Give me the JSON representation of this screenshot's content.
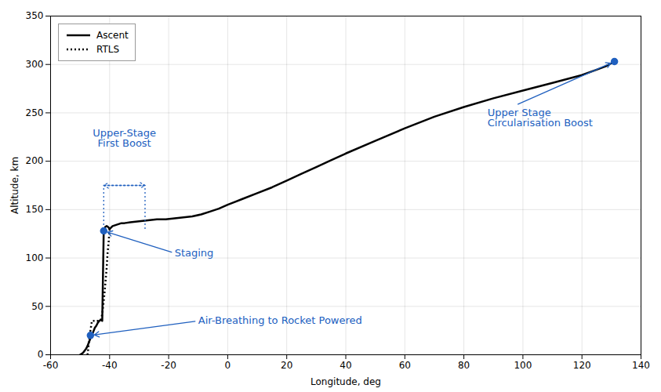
{
  "chart_data": {
    "type": "line",
    "xlabel": "Longitude, deg",
    "ylabel": "Altitude, km",
    "xlim": [
      -60,
      140
    ],
    "ylim": [
      0,
      350
    ],
    "xticks": [
      -60,
      -40,
      -20,
      0,
      20,
      40,
      60,
      80,
      100,
      120,
      140
    ],
    "yticks": [
      0,
      50,
      100,
      150,
      200,
      250,
      300,
      350
    ],
    "grid": true,
    "legend": "upper left",
    "series": [
      {
        "name": "Ascent",
        "color": "#000000",
        "line_style": "solid",
        "x": [
          -50,
          -49.5,
          -49,
          -48.5,
          -48,
          -47.5,
          -47,
          -46.5,
          -46,
          -45.5,
          -45,
          -44.5,
          -44,
          -43.5,
          -43,
          -42.5,
          -42,
          -41.5,
          -41.0,
          -40.5,
          -40,
          -39,
          -38,
          -37,
          -36,
          -35,
          -33,
          -30,
          -27,
          -24,
          -21,
          -18,
          -15,
          -12,
          -9,
          -6,
          -3,
          0,
          5,
          10,
          15,
          20,
          25,
          30,
          35,
          40,
          50,
          60,
          70,
          80,
          90,
          100,
          110,
          120,
          128,
          131
        ],
        "values": [
          0,
          1,
          2,
          4,
          6,
          9,
          13,
          17,
          20,
          24,
          28,
          30,
          33,
          35,
          36,
          35,
          128,
          132,
          133,
          132,
          130,
          133,
          134,
          135,
          136,
          136,
          137,
          138,
          139,
          140,
          140,
          141,
          142,
          143,
          145,
          148,
          151,
          155,
          161,
          167,
          173,
          180,
          187,
          194,
          201,
          208,
          221,
          234,
          246,
          256,
          265,
          273,
          281,
          289,
          298,
          303
        ]
      },
      {
        "name": "RTLS",
        "color": "#000000",
        "line_style": "dotted",
        "x": [
          -40,
          -40.3,
          -40.7,
          -41.0,
          -41.5,
          -42.0,
          -42.5,
          -43.0,
          -43.5,
          -44.0,
          -44.5,
          -45.0,
          -45.5,
          -46.0,
          -46.5,
          -47.0,
          -47.3,
          -47.5
        ],
        "values": [
          130,
          118,
          105,
          90,
          72,
          55,
          42,
          36,
          35,
          35,
          35,
          35,
          35,
          35,
          25,
          14,
          4,
          0
        ]
      }
    ],
    "points": {
      "x": [
        131,
        -46.5,
        -42
      ],
      "y": [
        303,
        20,
        128
      ],
      "color": "#2060bf",
      "marker": "circle"
    },
    "annotations": [
      {
        "text": "Air-Breathing to Rocket Powered",
        "x": -46.5,
        "y": 20,
        "text_x": -10,
        "text_y": 35,
        "color": "#2060bf"
      },
      {
        "text": "Staging",
        "x": -42,
        "y": 128,
        "text_x": -18,
        "text_y": 105,
        "color": "#2060bf"
      },
      {
        "text": "Upper Stage\nCircularisation Boost",
        "x": 131,
        "y": 303,
        "text_x": 88,
        "text_y": 245,
        "color": "#2060bf"
      }
    ],
    "bracket": {
      "text": "Upper-Stage\nFirst Boost",
      "text_x": -35,
      "text_y": 215,
      "x1": -42,
      "x2": -28,
      "arrow_y": 175,
      "line_y_bottom": 130,
      "line_y_top": 175,
      "color": "#2060bf",
      "line_style": "dotted"
    }
  }
}
